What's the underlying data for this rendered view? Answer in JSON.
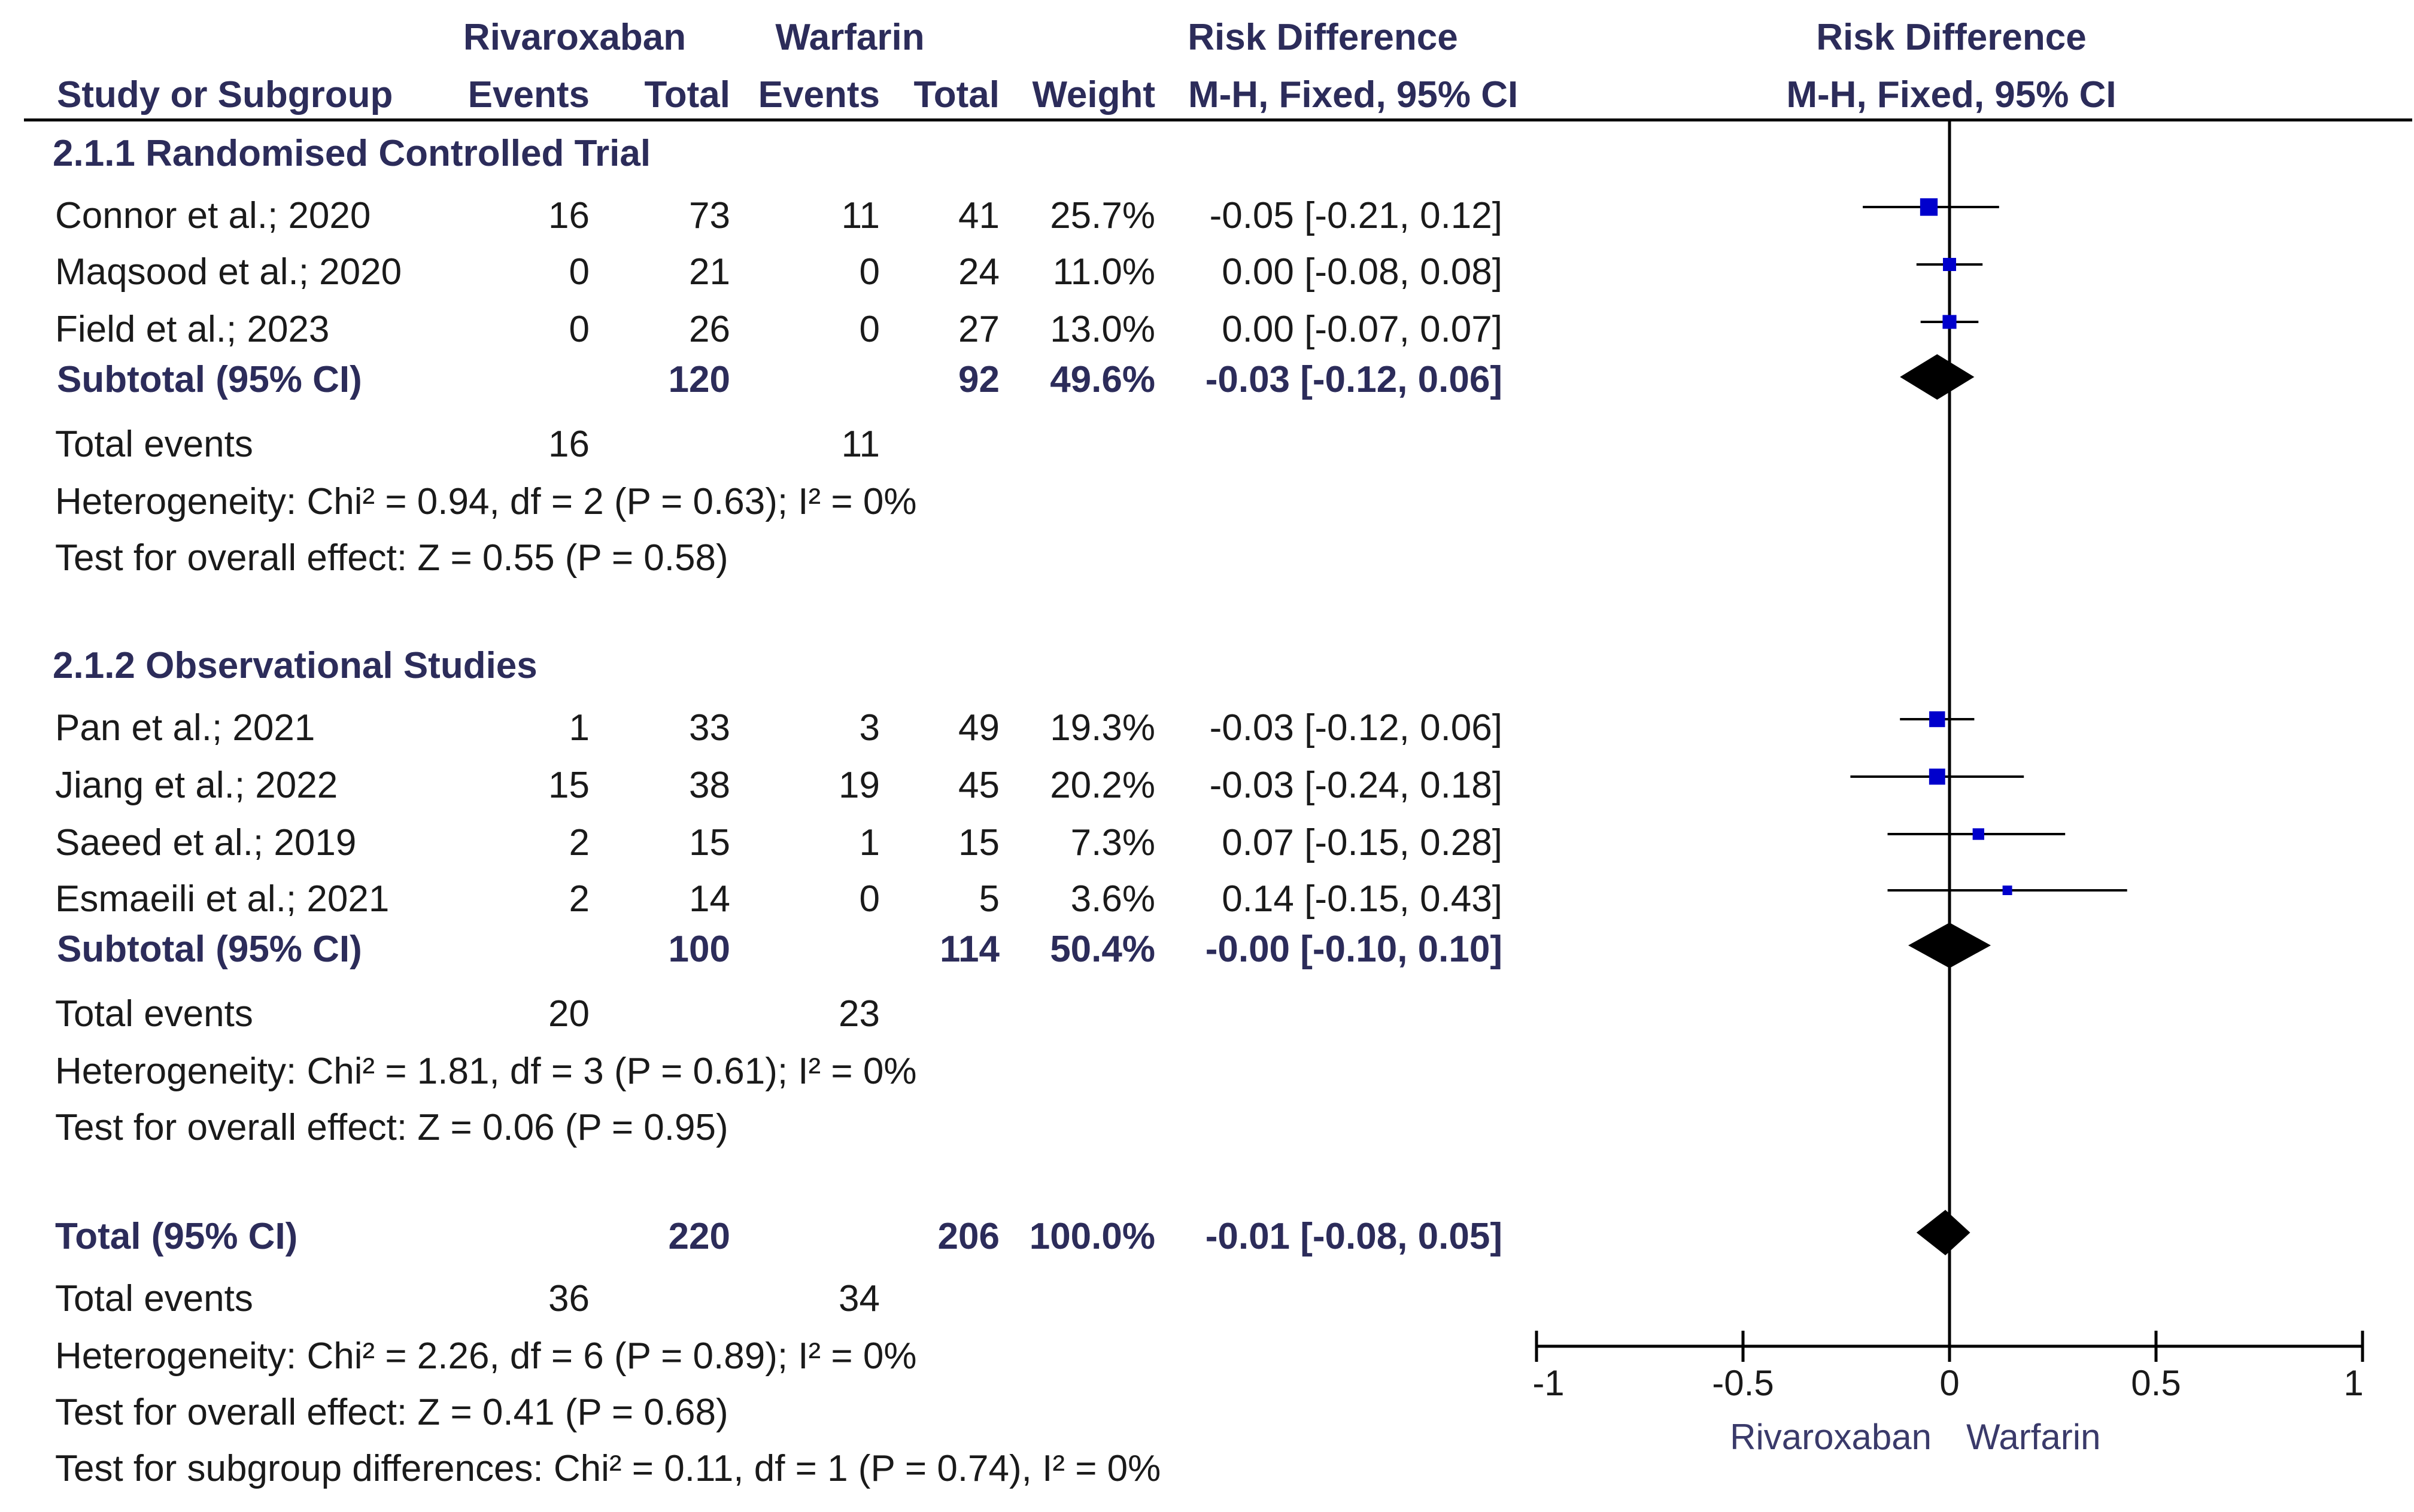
{
  "header": {
    "group1": "Rivaroxaban",
    "group2": "Warfarin",
    "rd_table": "Risk Difference",
    "rd_plot": "Risk Difference",
    "study_col": "Study or Subgroup",
    "events1": "Events",
    "total1": "Total",
    "events2": "Events",
    "total2": "Total",
    "weight": "Weight",
    "method_table": "M-H, Fixed, 95% CI",
    "method_plot": "M-H, Fixed, 95% CI"
  },
  "subgroups": [
    {
      "title": "2.1.1 Randomised Controlled Trial",
      "studies": [
        {
          "name": "Connor et al.; 2020",
          "e1": "16",
          "t1": "73",
          "e2": "11",
          "t2": "41",
          "weight": "25.7%",
          "ci": "-0.05 [-0.21, 0.12]"
        },
        {
          "name": "Maqsood et al.; 2020",
          "e1": "0",
          "t1": "21",
          "e2": "0",
          "t2": "24",
          "weight": "11.0%",
          "ci": "0.00 [-0.08, 0.08]"
        },
        {
          "name": "Field et al.; 2023",
          "e1": "0",
          "t1": "26",
          "e2": "0",
          "t2": "27",
          "weight": "13.0%",
          "ci": "0.00 [-0.07, 0.07]"
        }
      ],
      "subtotal": {
        "label": "Subtotal (95% CI)",
        "t1": "120",
        "t2": "92",
        "weight": "49.6%",
        "ci": "-0.03 [-0.12, 0.06]"
      },
      "total_events": {
        "label": "Total events",
        "e1": "16",
        "e2": "11"
      },
      "heterogeneity": "Heterogeneity: Chi² = 0.94, df = 2 (P = 0.63); I² = 0%",
      "overall": "Test for overall effect: Z = 0.55 (P = 0.58)"
    },
    {
      "title": "2.1.2 Observational Studies",
      "studies": [
        {
          "name": "Pan et al.; 2021",
          "e1": "1",
          "t1": "33",
          "e2": "3",
          "t2": "49",
          "weight": "19.3%",
          "ci": "-0.03 [-0.12, 0.06]"
        },
        {
          "name": "Jiang et al.; 2022",
          "e1": "15",
          "t1": "38",
          "e2": "19",
          "t2": "45",
          "weight": "20.2%",
          "ci": "-0.03 [-0.24, 0.18]"
        },
        {
          "name": "Saeed et al.; 2019",
          "e1": "2",
          "t1": "15",
          "e2": "1",
          "t2": "15",
          "weight": "7.3%",
          "ci": "0.07 [-0.15, 0.28]"
        },
        {
          "name": "Esmaeili et al.; 2021",
          "e1": "2",
          "t1": "14",
          "e2": "0",
          "t2": "5",
          "weight": "3.6%",
          "ci": "0.14 [-0.15, 0.43]"
        }
      ],
      "subtotal": {
        "label": "Subtotal (95% CI)",
        "t1": "100",
        "t2": "114",
        "weight": "50.4%",
        "ci": "-0.00 [-0.10, 0.10]"
      },
      "total_events": {
        "label": "Total events",
        "e1": "20",
        "e2": "23"
      },
      "heterogeneity": "Heterogeneity: Chi² = 1.81, df = 3 (P = 0.61); I² = 0%",
      "overall": "Test for overall effect: Z = 0.06 (P = 0.95)"
    }
  ],
  "total": {
    "label": "Total (95% CI)",
    "t1": "220",
    "t2": "206",
    "weight": "100.0%",
    "ci": "-0.01 [-0.08, 0.05]",
    "total_events": {
      "label": "Total events",
      "e1": "36",
      "e2": "34"
    },
    "heterogeneity": "Heterogeneity: Chi² = 2.26, df = 6 (P = 0.89); I² = 0%",
    "overall": "Test for overall effect: Z = 0.41 (P = 0.68)",
    "subgroup_diff": "Test for subgroup differences: Chi² = 0.11, df = 1 (P = 0.74), I² = 0%"
  },
  "colors": {
    "study_marker": "#0000cc",
    "diamond": "#000000",
    "header_text": "#2c2c5a"
  },
  "chart_data": {
    "type": "forest",
    "title": "Risk Difference",
    "subtitle": "M-H, Fixed, 95% CI",
    "xlim": [
      -1,
      1
    ],
    "xticks": [
      -1,
      -0.5,
      0,
      0.5,
      1
    ],
    "xtick_labels": [
      "-1",
      "-0.5",
      "0",
      "0.5",
      "1"
    ],
    "favours_left": "Rivaroxaban",
    "favours_right": "Warfarin",
    "studies": [
      {
        "name": "Connor et al.; 2020",
        "est": -0.05,
        "lo": -0.21,
        "hi": 0.12,
        "weight": 25.7
      },
      {
        "name": "Maqsood et al.; 2020",
        "est": 0.0,
        "lo": -0.08,
        "hi": 0.08,
        "weight": 11.0
      },
      {
        "name": "Field et al.; 2023",
        "est": 0.0,
        "lo": -0.07,
        "hi": 0.07,
        "weight": 13.0
      },
      {
        "name": "Pan et al.; 2021",
        "est": -0.03,
        "lo": -0.12,
        "hi": 0.06,
        "weight": 19.3
      },
      {
        "name": "Jiang et al.; 2022",
        "est": -0.03,
        "lo": -0.24,
        "hi": 0.18,
        "weight": 20.2
      },
      {
        "name": "Saeed et al.; 2019",
        "est": 0.07,
        "lo": -0.15,
        "hi": 0.28,
        "weight": 7.3
      },
      {
        "name": "Esmaeili et al.; 2021",
        "est": 0.14,
        "lo": -0.15,
        "hi": 0.43,
        "weight": 3.6
      }
    ],
    "pooled": [
      {
        "name": "Subtotal 2.1.1",
        "est": -0.03,
        "lo": -0.12,
        "hi": 0.06
      },
      {
        "name": "Subtotal 2.1.2",
        "est": 0.0,
        "lo": -0.1,
        "hi": 0.1
      },
      {
        "name": "Total",
        "est": -0.01,
        "lo": -0.08,
        "hi": 0.05
      }
    ]
  }
}
